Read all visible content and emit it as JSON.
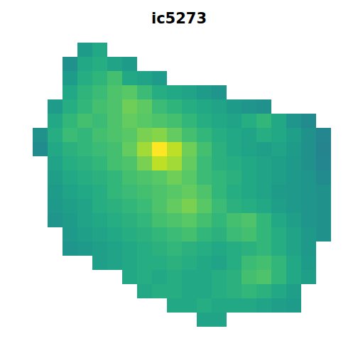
{
  "chart_data": {
    "type": "heatmap",
    "title": "ic5273",
    "color": "viridis",
    "zlim": [
      0,
      1
    ],
    "tick_labels": false,
    "cells": [
      [
        null,
        null,
        null,
        0.55,
        0.6,
        null,
        null,
        null,
        null,
        null,
        null,
        null,
        null,
        null,
        null,
        null,
        null,
        null,
        null,
        null
      ],
      [
        null,
        null,
        0.5,
        0.6,
        0.62,
        0.58,
        0.55,
        null,
        null,
        null,
        null,
        null,
        null,
        null,
        null,
        null,
        null,
        null,
        null,
        null
      ],
      [
        null,
        null,
        0.55,
        0.62,
        0.65,
        0.7,
        0.6,
        0.58,
        0.55,
        null,
        null,
        null,
        null,
        null,
        null,
        null,
        null,
        null,
        null,
        null
      ],
      [
        null,
        null,
        0.6,
        0.65,
        0.68,
        0.72,
        0.74,
        0.68,
        0.62,
        0.6,
        0.58,
        0.55,
        0.52,
        null,
        null,
        null,
        null,
        null,
        null,
        null
      ],
      [
        null,
        0.55,
        0.62,
        0.66,
        0.7,
        0.72,
        0.78,
        0.75,
        0.68,
        0.65,
        0.62,
        0.6,
        0.58,
        0.55,
        0.52,
        0.5,
        null,
        null,
        null,
        null
      ],
      [
        null,
        0.6,
        0.66,
        0.7,
        0.68,
        0.72,
        0.76,
        0.74,
        0.72,
        0.7,
        0.66,
        0.62,
        0.6,
        0.58,
        0.62,
        0.66,
        0.6,
        0.52,
        0.48,
        null
      ],
      [
        0.5,
        0.62,
        0.68,
        0.66,
        0.7,
        0.72,
        0.74,
        0.8,
        0.82,
        0.76,
        0.7,
        0.66,
        0.62,
        0.6,
        0.58,
        0.62,
        0.6,
        0.56,
        0.5,
        0.46
      ],
      [
        0.48,
        0.6,
        0.64,
        0.66,
        0.68,
        0.7,
        0.76,
        0.86,
        1.0,
        0.9,
        0.78,
        0.7,
        0.64,
        0.6,
        0.58,
        0.56,
        0.58,
        0.55,
        0.5,
        0.45
      ],
      [
        null,
        0.58,
        0.62,
        0.64,
        0.66,
        0.7,
        0.72,
        0.8,
        0.9,
        0.86,
        0.76,
        0.68,
        0.64,
        0.62,
        0.6,
        0.58,
        0.56,
        0.54,
        0.5,
        0.46
      ],
      [
        null,
        0.56,
        0.6,
        0.62,
        0.64,
        0.66,
        0.7,
        0.72,
        0.74,
        0.78,
        0.74,
        0.68,
        0.66,
        0.64,
        0.6,
        0.58,
        0.56,
        0.54,
        0.52,
        0.48
      ],
      [
        null,
        0.55,
        0.58,
        0.6,
        0.62,
        0.66,
        0.68,
        0.7,
        0.72,
        0.74,
        0.76,
        0.72,
        0.66,
        0.62,
        0.6,
        0.58,
        0.55,
        0.54,
        0.52,
        0.5
      ],
      [
        null,
        0.54,
        0.56,
        0.58,
        0.62,
        0.64,
        0.66,
        0.68,
        0.72,
        0.76,
        0.8,
        0.74,
        0.68,
        0.64,
        0.62,
        0.6,
        0.56,
        0.54,
        0.52,
        0.5
      ],
      [
        null,
        0.52,
        0.55,
        0.58,
        0.6,
        0.62,
        0.64,
        0.66,
        0.7,
        0.72,
        0.74,
        0.7,
        0.66,
        0.7,
        0.72,
        0.66,
        0.6,
        0.56,
        0.52,
        0.5
      ],
      [
        null,
        null,
        0.54,
        0.56,
        0.58,
        0.6,
        0.62,
        0.64,
        0.66,
        0.68,
        0.7,
        0.66,
        0.64,
        0.68,
        0.7,
        0.66,
        0.62,
        0.58,
        0.54,
        0.5
      ],
      [
        null,
        null,
        0.52,
        0.54,
        0.56,
        0.58,
        0.6,
        0.62,
        0.64,
        0.66,
        0.64,
        0.62,
        0.6,
        0.62,
        0.64,
        0.66,
        0.62,
        0.58,
        0.54,
        null
      ],
      [
        null,
        null,
        null,
        null,
        0.56,
        0.58,
        0.6,
        0.62,
        0.62,
        0.64,
        0.62,
        0.6,
        0.58,
        0.62,
        0.68,
        0.7,
        0.66,
        0.6,
        0.55,
        null
      ],
      [
        null,
        null,
        null,
        null,
        null,
        null,
        0.6,
        0.62,
        0.6,
        0.62,
        0.6,
        0.6,
        0.62,
        0.64,
        0.7,
        0.72,
        0.66,
        0.6,
        0.56,
        null
      ],
      [
        null,
        null,
        null,
        null,
        null,
        null,
        null,
        0.6,
        0.62,
        0.62,
        0.6,
        0.6,
        0.62,
        0.64,
        0.66,
        0.64,
        0.6,
        0.56,
        null,
        null
      ],
      [
        null,
        null,
        null,
        null,
        null,
        null,
        null,
        null,
        null,
        0.6,
        0.6,
        0.62,
        0.6,
        0.6,
        0.6,
        0.58,
        0.56,
        0.55,
        null,
        null
      ],
      [
        null,
        null,
        null,
        null,
        null,
        null,
        null,
        null,
        null,
        null,
        null,
        0.58,
        0.58,
        null,
        null,
        null,
        null,
        null,
        null,
        null
      ]
    ]
  }
}
